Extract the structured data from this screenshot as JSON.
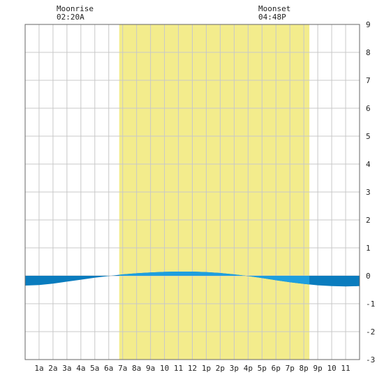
{
  "moon": {
    "rise_label": "Moonrise",
    "rise_time": "02:20A",
    "set_label": "Moonset",
    "set_time": "04:48P"
  },
  "chart_data": {
    "type": "area",
    "title": "",
    "xlabel": "",
    "ylabel": "",
    "x_tick_labels": [
      "1a",
      "2a",
      "3a",
      "4a",
      "5a",
      "6a",
      "7a",
      "8a",
      "9a",
      "10",
      "11",
      "12",
      "1p",
      "2p",
      "3p",
      "4p",
      "5p",
      "6p",
      "7p",
      "8p",
      "9p",
      "10",
      "11"
    ],
    "x_range_hours": [
      0,
      24
    ],
    "ylim": [
      -3,
      9
    ],
    "y_ticks": [
      -3,
      -2,
      -1,
      0,
      1,
      2,
      3,
      4,
      5,
      6,
      7,
      8,
      9
    ],
    "daylight_hours": [
      6.75,
      20.4
    ],
    "grid": true,
    "series": [
      {
        "x": [
          0,
          1,
          2,
          3,
          4,
          5,
          6,
          7,
          8,
          9,
          10,
          11,
          12,
          13,
          14,
          15,
          16,
          17,
          18,
          19,
          20,
          21,
          22,
          23,
          24
        ],
        "values": [
          -0.35,
          -0.33,
          -0.28,
          -0.21,
          -0.14,
          -0.07,
          -0.01,
          0.05,
          0.09,
          0.12,
          0.14,
          0.15,
          0.15,
          0.13,
          0.1,
          0.05,
          -0.01,
          -0.08,
          -0.16,
          -0.23,
          -0.29,
          -0.34,
          -0.37,
          -0.38,
          -0.37
        ]
      }
    ],
    "colors": {
      "daylight": "#f3ec8c",
      "grid": "#c8c8c8",
      "tide_night": "#0a7cbe",
      "tide_day": "#1e9fde",
      "frame": "#666666"
    }
  }
}
